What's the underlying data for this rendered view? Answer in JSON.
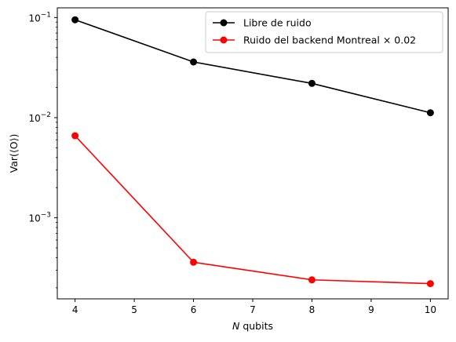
{
  "chart_data": {
    "type": "line",
    "xlabel": "N qubits",
    "ylabel": "Var(⟨O⟩)",
    "yscale": "log",
    "xlim": [
      3.7,
      10.3
    ],
    "ylim": [
      0.000155,
      0.125
    ],
    "x_ticks": [
      4,
      5,
      6,
      7,
      8,
      9,
      10
    ],
    "y_ticks": [
      {
        "value": 0.001,
        "base": "10",
        "exp": "−3"
      },
      {
        "value": 0.01,
        "base": "10",
        "exp": "−2"
      },
      {
        "value": 0.1,
        "base": "10",
        "exp": "−1"
      }
    ],
    "grid": false,
    "legend_position": "top-right",
    "series": [
      {
        "name": "Libre de ruido",
        "color": "#000000",
        "marker": "circle",
        "x": [
          4,
          6,
          8,
          10
        ],
        "y": [
          0.095,
          0.036,
          0.022,
          0.0112
        ]
      },
      {
        "name": "Ruido del backend Montreal × 0.02",
        "color": "#ff0000",
        "marker": "circle",
        "x": [
          4,
          6,
          8,
          10
        ],
        "y": [
          0.0066,
          0.00036,
          0.00024,
          0.00022
        ]
      }
    ]
  }
}
